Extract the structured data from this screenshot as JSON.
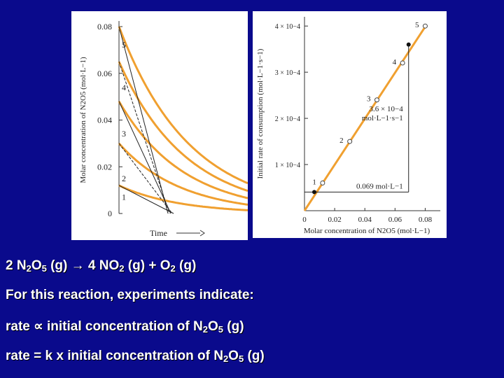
{
  "chart_data": [
    {
      "type": "line",
      "xlabel": "Time",
      "ylabel": "Molar concentration of N2O5 (mol·L−1)",
      "ylim": [
        0,
        0.08
      ],
      "yticks": [
        "0.08",
        "0.06",
        "0.04",
        "0.02",
        "0"
      ],
      "curve_labels": [
        "5",
        "4",
        "3",
        "2",
        "1"
      ],
      "series": [
        {
          "initial": 0.08
        },
        {
          "initial": 0.065
        },
        {
          "initial": 0.048
        },
        {
          "initial": 0.03
        },
        {
          "initial": 0.012
        }
      ],
      "tangent_lines": true
    },
    {
      "type": "line",
      "xlabel": "Molar concentration of N2O5 (mol·L−1)",
      "ylabel": "Initial rate of consumption (mol·L−1·s−1)",
      "xlim": [
        0,
        0.09
      ],
      "ylim": [
        0,
        0.00042
      ],
      "xticks": [
        "0",
        "0.02",
        "0.04",
        "0.06",
        "0.08"
      ],
      "yticks": [
        "4 × 10−4",
        "3 × 10−4",
        "2 × 10−4",
        "1 × 10−4"
      ],
      "points": [
        {
          "label": "1",
          "x": 0.012,
          "y": 6e-05
        },
        {
          "label": "2",
          "x": 0.03,
          "y": 0.00015
        },
        {
          "label": "3",
          "x": 0.048,
          "y": 0.00024
        },
        {
          "label": "4",
          "x": 0.065,
          "y": 0.00032
        },
        {
          "label": "5",
          "x": 0.08,
          "y": 0.0004
        }
      ],
      "annotation_x": "0.069 mol·L−1",
      "annotation_y_value": "3.6 × 10−4",
      "annotation_y_unit": "mol·L−1·s−1",
      "annotation_point": {
        "x": 0.069,
        "y": 0.00036
      }
    }
  ],
  "text": {
    "line1_a": "2 N",
    "line1_sub1": "2",
    "line1_b": "O",
    "line1_sub2": "5",
    "line1_c": " (g) ",
    "arrow": "→",
    "line1_d": " 4 NO",
    "line1_sub3": "2",
    "line1_e": " (g) + O",
    "line1_sub4": "2",
    "line1_f": " (g)",
    "line2": "For this reaction, experiments indicate:",
    "line3_a": "rate ",
    "prop": "∝",
    "line3_b": " initial concentration of N",
    "line3_sub1": "2",
    "line3_c": "O",
    "line3_sub2": "5",
    "line3_d": " (g)",
    "line4_a": "rate = k x initial concentration of N",
    "line4_sub1": "2",
    "line4_b": "O",
    "line4_sub2": "5",
    "line4_c": " (g)"
  }
}
